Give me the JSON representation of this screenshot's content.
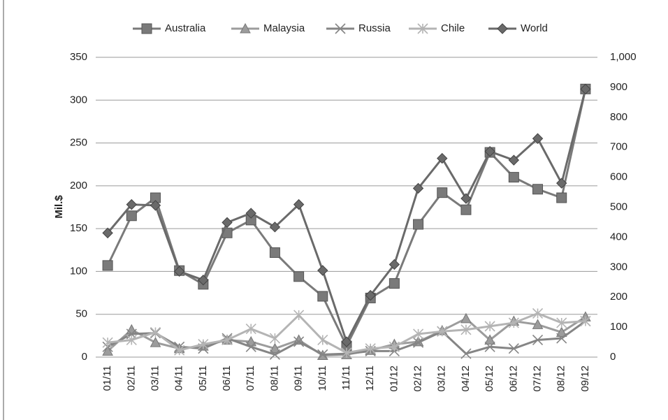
{
  "chart_data": {
    "type": "line",
    "y_label": "Mil.$",
    "categories": [
      "01/11",
      "02/11",
      "03/11",
      "04/11",
      "05/11",
      "06/11",
      "07/11",
      "08/11",
      "09/11",
      "10/11",
      "11/11",
      "12/11",
      "01/12",
      "02/12",
      "03/12",
      "04/12",
      "05/12",
      "06/12",
      "07/12",
      "08/12",
      "09/12"
    ],
    "series": [
      {
        "name": "Australia",
        "color": "#7a7a7a",
        "marker": "square",
        "values": [
          107,
          165,
          186,
          101,
          85,
          145,
          160,
          122,
          94,
          71,
          13,
          69,
          86,
          155,
          192,
          172,
          239,
          210,
          196,
          186,
          313
        ]
      },
      {
        "name": "Malaysia",
        "color": "#9c9c9c",
        "marker": "triangle",
        "values": [
          7,
          32,
          17,
          10,
          13,
          20,
          18,
          10,
          20,
          2,
          3,
          8,
          15,
          18,
          31,
          45,
          20,
          42,
          38,
          29,
          47
        ]
      },
      {
        "name": "Russia",
        "color": "#858585",
        "marker": "x",
        "values": [
          12,
          27,
          28,
          12,
          10,
          22,
          12,
          3,
          18,
          3,
          4,
          7,
          7,
          17,
          30,
          4,
          12,
          10,
          20,
          22,
          42
        ]
      },
      {
        "name": "Chile",
        "color": "#b4b4b4",
        "marker": "star",
        "values": [
          17,
          20,
          29,
          8,
          15,
          20,
          33,
          22,
          49,
          20,
          5,
          10,
          12,
          27,
          30,
          32,
          36,
          40,
          51,
          40,
          42
        ]
      },
      {
        "name": "World",
        "color": "#6a6a6a",
        "marker": "diamond",
        "axis": "y2",
        "values": [
          414,
          509,
          506,
          286,
          257,
          449,
          480,
          434,
          509,
          289,
          51,
          206,
          309,
          563,
          663,
          529,
          686,
          657,
          729,
          580,
          894
        ]
      }
    ],
    "ylim": [
      0,
      350
    ],
    "yticks": [
      0,
      50,
      100,
      150,
      200,
      250,
      300,
      350
    ],
    "y2lim": [
      0,
      1000
    ],
    "y2ticks": [
      0,
      100,
      200,
      300,
      400,
      500,
      600,
      700,
      800,
      900,
      {
        "value": 1000,
        "label": "1,000"
      }
    ],
    "grid": true,
    "legend": "top"
  }
}
